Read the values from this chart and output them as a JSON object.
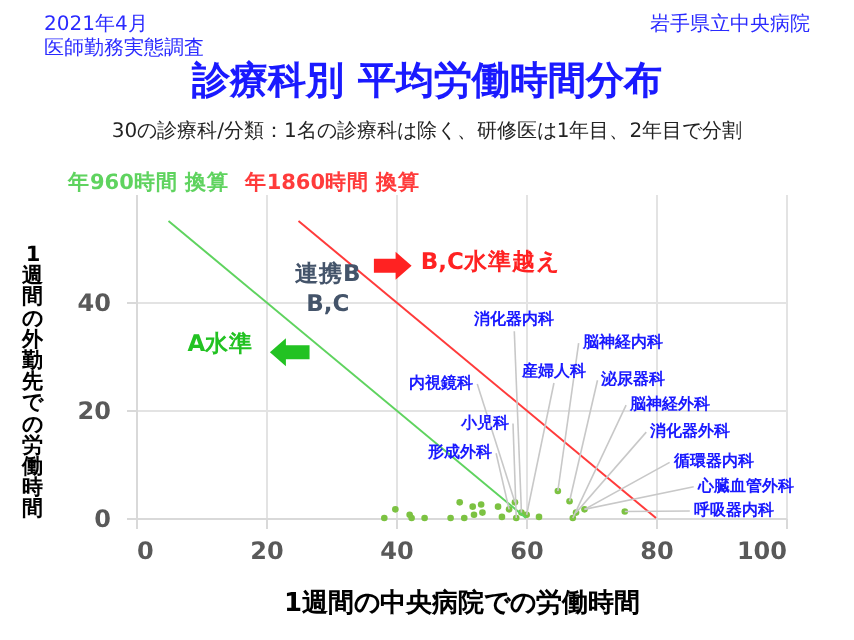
{
  "chart_data": {
    "type": "scatter",
    "title": "診療科別 平均労働時間分布",
    "subtitle": "30の診療科/分類：1名の診療科は除く、研修医は1年目、2年目で分割",
    "xlabel": "1週間の中央病院での労働時間",
    "ylabel": "1週間の外勤先での労働時間",
    "annotations": [
      "2021年4月",
      "医師勤務実態調査",
      "岩手県立中央病院",
      "連携B\nB,C",
      "A水準",
      "B,C水準越え",
      {
        "text": "消化器内科",
        "x": 59.3,
        "y": 1
      },
      {
        "text": "脳神経内科",
        "x": 64.9,
        "y": 5
      },
      {
        "text": "内視鏡科",
        "x": 58.3,
        "y": 2.9
      },
      {
        "text": "産婦人科",
        "x": 60.1,
        "y": 0.6
      },
      {
        "text": "泌尿器科",
        "x": 66.7,
        "y": 3.1
      },
      {
        "text": "脳神経外科",
        "x": 67.2,
        "y": 0
      },
      {
        "text": "小児科",
        "x": 58.5,
        "y": 0
      },
      {
        "text": "消化器外科",
        "x": 67.7,
        "y": 1
      },
      {
        "text": "形成外科",
        "x": 57.4,
        "y": 1.6
      },
      {
        "text": "循環器内科",
        "x": 69,
        "y": 1.6
      },
      {
        "text": "心臓血管外科",
        "x": 69,
        "y": 1.6
      },
      {
        "text": "呼吸器内科",
        "x": 75.2,
        "y": 1.2
      }
    ],
    "xlim": [
      0,
      100
    ],
    "ylim": [
      0,
      60
    ],
    "xticks": [
      0,
      20,
      40,
      60,
      80,
      100
    ],
    "yticks": [
      0,
      20,
      40
    ],
    "grid": true,
    "marker": "circle",
    "series": [
      {
        "color": "#7cc242",
        "x": [
          38.2,
          39.9,
          42.1,
          42.4,
          44.4,
          48.4,
          49.8,
          50.5,
          51.8,
          52,
          53.1,
          53.3,
          55.7,
          56.3,
          57.4,
          58.3,
          58.5,
          59.3,
          60.1,
          62,
          64.9,
          66.7,
          67.2,
          67.7,
          69,
          75.2
        ],
        "values": [
          0,
          1.6,
          0.6,
          0,
          0,
          0,
          2.9,
          0,
          2.1,
          0.6,
          2.5,
          1,
          2.1,
          0.2,
          1.6,
          2.9,
          0,
          1,
          0.6,
          0.2,
          5,
          3.1,
          0,
          1,
          1.6,
          1.2
        ]
      },
      {
        "type": "line",
        "marker": "none",
        "name": "年960時間 換算",
        "color": "#5fd35f",
        "x": [
          5,
          60
        ],
        "values": [
          55,
          0
        ]
      },
      {
        "type": "line",
        "marker": "none",
        "name": "年1860時間 換算",
        "color": "#ff3b3b",
        "x": [
          25,
          80
        ],
        "values": [
          55,
          0
        ]
      }
    ]
  }
}
